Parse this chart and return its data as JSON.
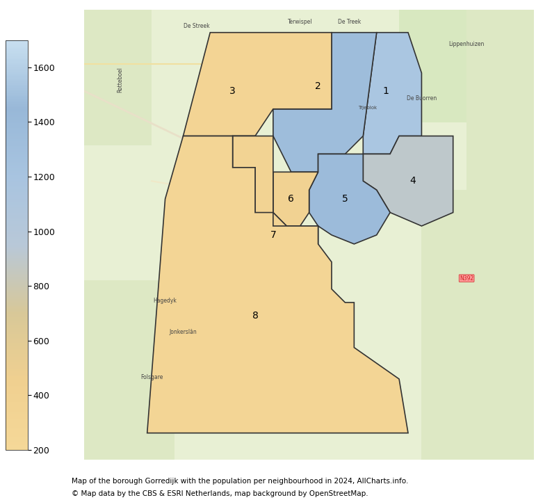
{
  "title_line1": "Map of the borough Gorredijk with the population per neighbourhood in 2024, AllCharts.info.",
  "title_line2": "© Map data by the CBS & ESRI Netherlands, map background by OpenStreetMap.",
  "colorbar_min": 200,
  "colorbar_max": 1700,
  "colorbar_ticks": [
    200,
    400,
    600,
    800,
    1000,
    1200,
    1400,
    1600
  ],
  "colorbar_colors_top": "#b8d4e8",
  "colorbar_colors_bottom": "#f5dfa0",
  "background_color": "#ffffff",
  "map_bg_color": "#e8f0d8",
  "neighbourhoods": [
    {
      "id": 1,
      "label": "1",
      "value": 1540,
      "color": "#c5ddef"
    },
    {
      "id": 2,
      "label": "2",
      "value": 1480,
      "color": "#c8dff0"
    },
    {
      "id": 3,
      "label": "3",
      "value": 320,
      "color": "#f0d898"
    },
    {
      "id": 4,
      "label": "4",
      "value": 900,
      "color": "#c8c8b8"
    },
    {
      "id": 5,
      "label": "5",
      "value": 1380,
      "color": "#b8cce0"
    },
    {
      "id": 6,
      "label": "6",
      "value": 380,
      "color": "#e8c890"
    },
    {
      "id": 7,
      "label": "7",
      "value": 350,
      "color": "#eece98"
    },
    {
      "id": 8,
      "label": "8",
      "value": 290,
      "color": "#f0d898"
    }
  ],
  "figsize": [
    7.94,
    7.19
  ],
  "dpi": 100
}
